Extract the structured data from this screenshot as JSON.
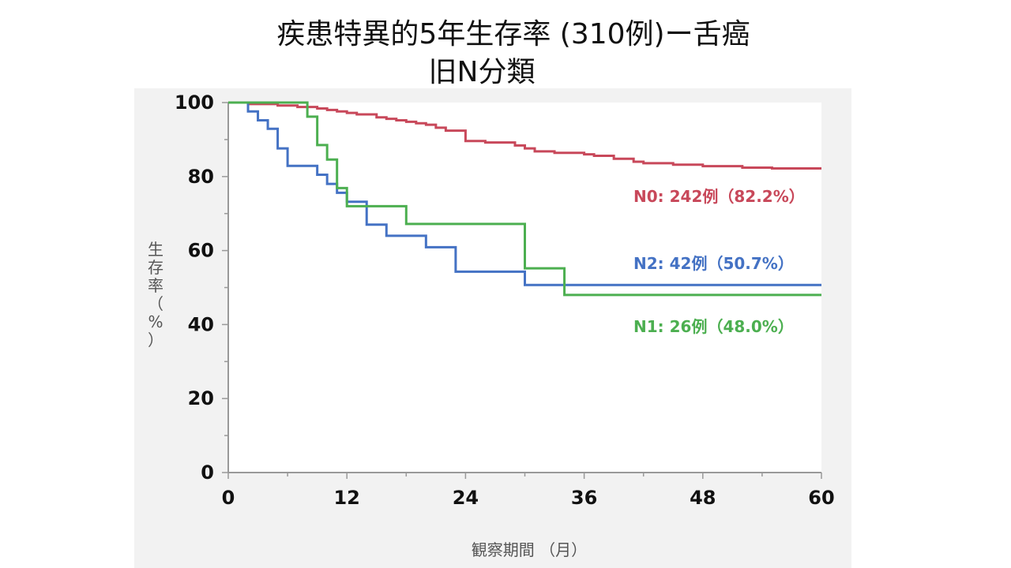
{
  "chart_data": {
    "type": "line",
    "title_line1": "疾患特異的5年生存率 (310例)ー舌癌",
    "title_line2": "旧N分類",
    "xlabel": "観察期間 （月）",
    "ylabel_chars": [
      "生",
      "存",
      "率",
      "（",
      "%",
      "）"
    ],
    "xlim": [
      0,
      60
    ],
    "ylim": [
      0,
      100
    ],
    "x_ticks": [
      "0",
      "12",
      "24",
      "36",
      "48",
      "60"
    ],
    "y_ticks": [
      "0",
      "20",
      "40",
      "60",
      "80",
      "100"
    ],
    "grid": false,
    "series": [
      {
        "name": "N0",
        "label": "N0: 242例（82.2%）",
        "color": "#c8485a",
        "x": [
          0,
          2,
          5,
          7,
          9,
          10,
          11,
          12,
          13,
          15,
          16,
          17,
          18,
          19,
          20,
          21,
          22,
          24,
          26,
          29,
          30,
          31,
          33,
          36,
          37,
          39,
          41,
          42,
          45,
          48,
          49,
          52,
          55,
          60
        ],
        "y": [
          100,
          99.6,
          99.2,
          98.8,
          98.4,
          98.0,
          97.6,
          97.2,
          96.8,
          96.0,
          95.6,
          95.2,
          94.8,
          94.4,
          94.0,
          93.2,
          92.4,
          89.6,
          89.2,
          88.4,
          87.6,
          86.8,
          86.4,
          86.0,
          85.6,
          84.8,
          84.0,
          83.6,
          83.2,
          82.8,
          82.8,
          82.4,
          82.2,
          82.2
        ]
      },
      {
        "name": "N2",
        "label": "N2: 42例（50.7%）",
        "color": "#4472c4",
        "x": [
          0,
          2,
          3,
          4,
          5,
          6,
          9,
          10,
          11,
          12,
          14,
          16,
          20,
          23,
          30,
          36,
          60
        ],
        "y": [
          100,
          97.6,
          95.2,
          92.9,
          87.6,
          82.9,
          80.5,
          78.0,
          75.6,
          73.2,
          67.0,
          64.0,
          60.9,
          54.3,
          50.7,
          50.7,
          50.7
        ]
      },
      {
        "name": "N1",
        "label": "N1: 26例（48.0%）",
        "color": "#4caf50",
        "x": [
          0,
          8,
          9,
          10,
          11,
          12,
          14,
          18,
          30,
          34,
          60
        ],
        "y": [
          100,
          96.2,
          88.5,
          84.6,
          76.9,
          72.0,
          72.0,
          67.2,
          55.2,
          48.0,
          48.0
        ]
      }
    ]
  }
}
